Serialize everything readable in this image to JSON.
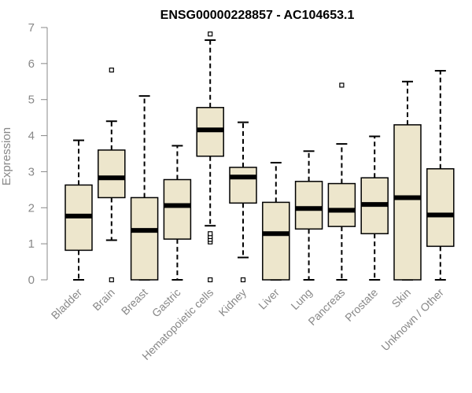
{
  "chart_data": {
    "type": "boxplot",
    "title": "ENSG00000228857 - AC104653.1",
    "ylabel": "Expression",
    "xlabel": "",
    "ylim": [
      0,
      7
    ],
    "yticks": [
      0,
      1,
      2,
      3,
      4,
      5,
      6,
      7
    ],
    "grid": false,
    "legend": "none",
    "colors": {
      "box_fill": "#ede6cc",
      "stroke": "#000000",
      "axis": "#888888",
      "title": "#000000"
    },
    "categories": [
      "Bladder",
      "Brain",
      "Breast",
      "Gastric",
      "Hematopoietic cells",
      "Kidney",
      "Liver",
      "Lung",
      "Pancreas",
      "Prostate",
      "Skin",
      "Unknown / Other"
    ],
    "boxes": [
      {
        "category": "Bladder",
        "whisker_low": 0,
        "q1": 0.82,
        "median": 1.77,
        "q3": 2.63,
        "whisker_high": 3.87,
        "outliers": []
      },
      {
        "category": "Brain",
        "whisker_low": 1.1,
        "q1": 2.28,
        "median": 2.83,
        "q3": 3.6,
        "whisker_high": 4.4,
        "outliers": [
          0,
          5.82
        ]
      },
      {
        "category": "Breast",
        "whisker_low": 0,
        "q1": 0,
        "median": 1.37,
        "q3": 2.28,
        "whisker_high": 5.1,
        "outliers": []
      },
      {
        "category": "Gastric",
        "whisker_low": 0,
        "q1": 1.13,
        "median": 2.06,
        "q3": 2.78,
        "whisker_high": 3.72,
        "outliers": []
      },
      {
        "category": "Hematopoietic cells",
        "whisker_low": 1.5,
        "q1": 3.43,
        "median": 4.16,
        "q3": 4.78,
        "whisker_high": 6.65,
        "outliers": [
          0,
          1.05,
          1.12,
          1.2,
          1.28,
          6.82
        ]
      },
      {
        "category": "Kidney",
        "whisker_low": 0.62,
        "q1": 2.13,
        "median": 2.85,
        "q3": 3.12,
        "whisker_high": 4.37,
        "outliers": [
          0
        ]
      },
      {
        "category": "Liver",
        "whisker_low": 0,
        "q1": 0,
        "median": 1.28,
        "q3": 2.15,
        "whisker_high": 3.25,
        "outliers": []
      },
      {
        "category": "Lung",
        "whisker_low": 0,
        "q1": 1.41,
        "median": 1.98,
        "q3": 2.73,
        "whisker_high": 3.57,
        "outliers": []
      },
      {
        "category": "Pancreas",
        "whisker_low": 0,
        "q1": 1.48,
        "median": 1.93,
        "q3": 2.67,
        "whisker_high": 3.77,
        "outliers": [
          5.4
        ]
      },
      {
        "category": "Prostate",
        "whisker_low": 0,
        "q1": 1.28,
        "median": 2.09,
        "q3": 2.83,
        "whisker_high": 3.98,
        "outliers": []
      },
      {
        "category": "Skin",
        "whisker_low": 0,
        "q1": 0,
        "median": 2.28,
        "q3": 4.3,
        "whisker_high": 5.5,
        "outliers": []
      },
      {
        "category": "Unknown / Other",
        "whisker_low": 0,
        "q1": 0.93,
        "median": 1.8,
        "q3": 3.08,
        "whisker_high": 5.8,
        "outliers": []
      }
    ]
  }
}
